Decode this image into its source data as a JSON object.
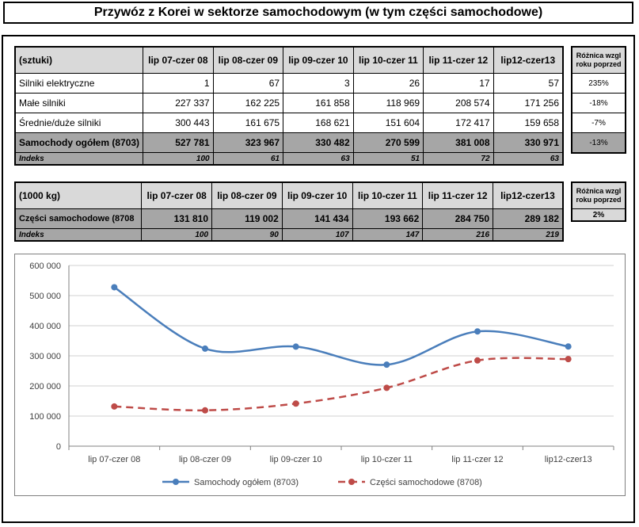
{
  "title": "Przywóz z Korei w sektorze samochodowym (w tym części samochodowe)",
  "table1": {
    "unit": "(sztuki)",
    "columns": [
      "lip 07-czer 08",
      "lip 08-czer 09",
      "lip 09-czer 10",
      "lip 10-czer 11",
      "lip 11-czer 12",
      "lip12-czer13"
    ],
    "rows": [
      {
        "label": "Silniki elektryczne",
        "values": [
          "1",
          "67",
          "3",
          "26",
          "17",
          "57"
        ],
        "diff": "235%"
      },
      {
        "label": "Małe silniki",
        "values": [
          "227 337",
          "162 225",
          "161 858",
          "118 969",
          "208 574",
          "171 256"
        ],
        "diff": "-18%"
      },
      {
        "label": "Średnie/duże silniki",
        "values": [
          "300 443",
          "161 675",
          "168 621",
          "151 604",
          "172 417",
          "159 658"
        ],
        "diff": "-7%"
      }
    ],
    "total": {
      "label": "Samochody ogółem (8703)",
      "values": [
        "527 781",
        "323 967",
        "330 482",
        "270 599",
        "381 008",
        "330 971"
      ],
      "diff": "-13%"
    },
    "index": {
      "label": "Indeks",
      "values": [
        "100",
        "61",
        "63",
        "51",
        "72",
        "63"
      ]
    },
    "diff_header": "Różnica wzgl roku poprzed"
  },
  "table2": {
    "unit": "(1000 kg)",
    "columns": [
      "lip 07-czer 08",
      "lip 08-czer 09",
      "lip 09-czer 10",
      "lip 10-czer 11",
      "lip 11-czer 12",
      "lip12-czer13"
    ],
    "total": {
      "label": "Części samochodowe (8708",
      "values": [
        "131 810",
        "119 002",
        "141 434",
        "193 662",
        "284 750",
        "289 182"
      ],
      "diff": "2%"
    },
    "index": {
      "label": "Indeks",
      "values": [
        "100",
        "90",
        "107",
        "147",
        "216",
        "219"
      ]
    },
    "diff_header": "Różnica wzgl roku poprzed"
  },
  "chart_data": {
    "type": "line",
    "categories": [
      "lip 07-czer 08",
      "lip 08-czer 09",
      "lip 09-czer 10",
      "lip 10-czer 11",
      "lip 11-czer 12",
      "lip12-czer13"
    ],
    "series": [
      {
        "name": "Samochody ogółem (8703)",
        "values": [
          527781,
          323967,
          330482,
          270599,
          381008,
          330971
        ],
        "color": "#4a7ebb",
        "style": "solid"
      },
      {
        "name": "Części samochodowe (8708)",
        "values": [
          131810,
          119002,
          141434,
          193662,
          284750,
          289182
        ],
        "color": "#be4b48",
        "style": "dashed"
      }
    ],
    "ylim": [
      0,
      600000
    ],
    "yticks": [
      "0",
      "100 000",
      "200 000",
      "300 000",
      "400 000",
      "500 000",
      "600 000"
    ],
    "grid": true,
    "legend": "bottom",
    "title": "",
    "xlabel": "",
    "ylabel": ""
  }
}
